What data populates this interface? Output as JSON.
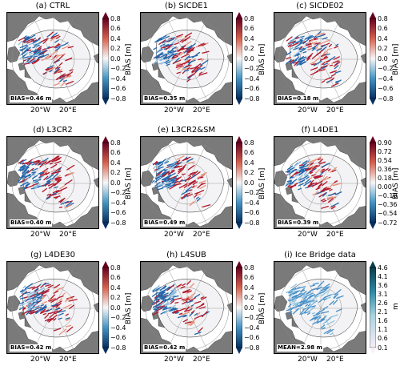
{
  "colors": {
    "land": "#7a7a7a",
    "ocean": "#ffffff",
    "ice": "#f3f3f5",
    "bias_negative": "#2166ac",
    "bias_positive": "#b2182b",
    "icebridge": "#4a90c8"
  },
  "longitude_labels": [
    "20°W",
    "20°E"
  ],
  "panels": [
    {
      "title": "(a) CTRL",
      "stat": "BIAS=0.46 m",
      "cbar_label": "BIAS [m]",
      "cbar_type": "bias",
      "ticks": [
        "0.8",
        "0.6",
        "0.4",
        "0.2",
        "0.0",
        "−0.2",
        "−0.4",
        "−0.6",
        "−0.8"
      ]
    },
    {
      "title": "(b) SICDE1",
      "stat": "BIAS=0.35 m",
      "cbar_label": "BIAS [m]",
      "cbar_type": "bias",
      "ticks": [
        "0.8",
        "0.6",
        "0.4",
        "0.2",
        "0.0",
        "−0.2",
        "−0.4",
        "−0.6",
        "−0.8"
      ]
    },
    {
      "title": "(c) SICDE02",
      "stat": "BIAS=0.18 m",
      "cbar_label": "BIAS [m]",
      "cbar_type": "bias",
      "ticks": [
        "0.8",
        "0.6",
        "0.4",
        "0.2",
        "0.0",
        "−0.2",
        "−0.4",
        "−0.6",
        "−0.8"
      ]
    },
    {
      "title": "(d) L3CR2",
      "stat": "BIAS=0.40 m",
      "cbar_label": "BIAS [m]",
      "cbar_type": "bias",
      "ticks": [
        "0.8",
        "0.6",
        "0.4",
        "0.2",
        "0.0",
        "−0.2",
        "−0.4",
        "−0.6",
        "−0.8"
      ]
    },
    {
      "title": "(e) L3CR2&SM",
      "stat": "BIAS=0.49 m",
      "cbar_label": "BIAS [m]",
      "cbar_type": "bias",
      "ticks": [
        "0.8",
        "0.6",
        "0.4",
        "0.2",
        "0.0",
        "−0.2",
        "−0.4",
        "−0.6",
        "−0.8"
      ]
    },
    {
      "title": "(f) L4DE1",
      "stat": "BIAS=0.39 m",
      "cbar_label": "BIAS [m]",
      "cbar_type": "bias",
      "ticks": [
        "0.90",
        "0.72",
        "0.54",
        "0.36",
        "0.18",
        "0.00",
        "−0.18",
        "−0.36",
        "−0.54",
        "−0.72"
      ]
    },
    {
      "title": "(g) L4DE30",
      "stat": "BIAS=0.42 m",
      "cbar_label": "BIAS [m]",
      "cbar_type": "bias",
      "ticks": [
        "0.8",
        "0.6",
        "0.4",
        "0.2",
        "0.0",
        "−0.2",
        "−0.4",
        "−0.6",
        "−0.8"
      ]
    },
    {
      "title": "(h) L4SUB",
      "stat": "BIAS=0.42 m",
      "cbar_label": "BIAS [m]",
      "cbar_type": "bias",
      "ticks": [
        "0.8",
        "0.6",
        "0.4",
        "0.2",
        "0.0",
        "−0.2",
        "−0.4",
        "−0.6",
        "−0.8"
      ]
    },
    {
      "title": "(i) Ice Bridge data",
      "stat": "MEAN=2.98 m",
      "cbar_label": "m",
      "cbar_type": "thickness",
      "ticks": [
        "4.6",
        "4.1",
        "3.6",
        "3.1",
        "2.6",
        "2.1",
        "1.6",
        "1.1",
        "0.6",
        "0.1"
      ]
    }
  ]
}
